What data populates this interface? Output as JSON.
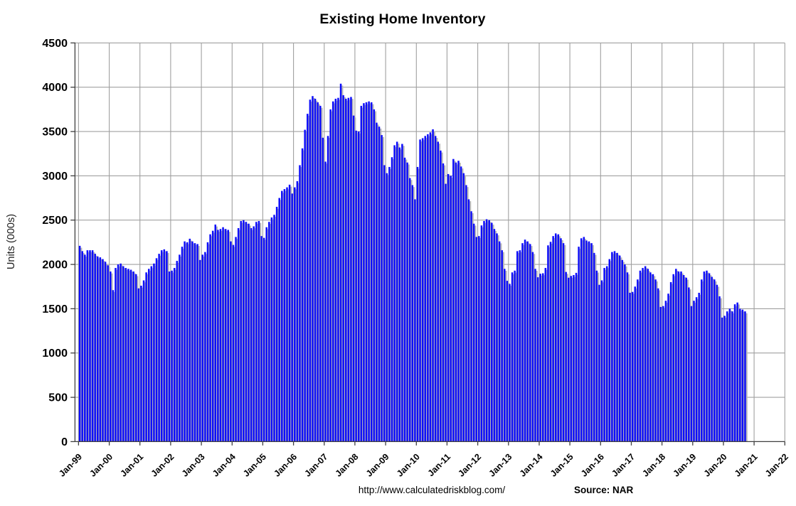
{
  "title": "Existing Home Inventory",
  "y_axis": {
    "label": "Units (000s)"
  },
  "footer": {
    "url": "http://www.calculatedriskblog.com/",
    "source": "Source: NAR"
  },
  "colors": {
    "bar": "#0d0dfa",
    "bar_shadow": "#b9b9b9",
    "grid": "#a0a0a0",
    "axis": "#3f3f3f",
    "text": "#000000",
    "background": "#ffffff"
  },
  "chart_data": {
    "type": "bar",
    "title": "Existing Home Inventory",
    "xlabel": "",
    "ylabel": "Units (000s)",
    "ylim": [
      0,
      4500
    ],
    "y_ticks": [
      0,
      500,
      1000,
      1500,
      2000,
      2500,
      3000,
      3500,
      4000,
      4500
    ],
    "x_ticklabels": [
      "Jan-99",
      "Jan-00",
      "Jan-01",
      "Jan-02",
      "Jan-03",
      "Jan-04",
      "Jan-05",
      "Jan-06",
      "Jan-07",
      "Jan-08",
      "Jan-09",
      "Jan-10",
      "Jan-11",
      "Jan-12",
      "Jan-13",
      "Jan-14",
      "Jan-15",
      "Jan-16",
      "Jan-17",
      "Jan-18",
      "Jan-19",
      "Jan-20",
      "Jan-21",
      "Jan-22"
    ],
    "frequency": "monthly",
    "start_month": "1999-01",
    "end_month": "2020-09",
    "x_axis_extends_to": "2022-01",
    "grid": true,
    "legend": false,
    "source_note": "Source: NAR",
    "series": [
      {
        "name": "Existing home inventory (thousands of units)",
        "values": [
          2210,
          2150,
          2110,
          2160,
          2160,
          2160,
          2120,
          2090,
          2080,
          2060,
          2030,
          1990,
          1920,
          1710,
          1960,
          2000,
          2010,
          1980,
          1960,
          1950,
          1940,
          1920,
          1890,
          1730,
          1760,
          1820,
          1910,
          1950,
          1980,
          2010,
          2070,
          2120,
          2160,
          2170,
          2150,
          1920,
          1930,
          1960,
          2040,
          2110,
          2200,
          2260,
          2250,
          2290,
          2260,
          2240,
          2230,
          2050,
          2110,
          2140,
          2250,
          2340,
          2380,
          2450,
          2390,
          2400,
          2420,
          2400,
          2390,
          2260,
          2220,
          2310,
          2410,
          2490,
          2500,
          2480,
          2460,
          2410,
          2430,
          2480,
          2490,
          2320,
          2300,
          2420,
          2480,
          2530,
          2560,
          2650,
          2750,
          2830,
          2850,
          2870,
          2900,
          2800,
          2870,
          2940,
          3120,
          3310,
          3520,
          3700,
          3860,
          3900,
          3870,
          3830,
          3790,
          3430,
          3160,
          3450,
          3750,
          3840,
          3870,
          3880,
          4040,
          3910,
          3870,
          3880,
          3890,
          3680,
          3510,
          3500,
          3790,
          3820,
          3830,
          3840,
          3830,
          3750,
          3600,
          3555,
          3460,
          3120,
          3030,
          3100,
          3210,
          3345,
          3385,
          3320,
          3360,
          3205,
          3150,
          2975,
          2895,
          2735,
          3100,
          3410,
          3425,
          3450,
          3470,
          3490,
          3525,
          3450,
          3385,
          3285,
          3140,
          2910,
          3020,
          3000,
          3190,
          3150,
          3170,
          3105,
          3030,
          2895,
          2735,
          2600,
          2460,
          2310,
          2320,
          2440,
          2490,
          2510,
          2500,
          2470,
          2400,
          2350,
          2260,
          2160,
          1950,
          1815,
          1780,
          1910,
          1930,
          2150,
          2160,
          2240,
          2280,
          2260,
          2230,
          2140,
          1950,
          1855,
          1895,
          1900,
          1960,
          2215,
          2255,
          2320,
          2350,
          2340,
          2295,
          2240,
          1915,
          1850,
          1870,
          1880,
          1905,
          2200,
          2295,
          2310,
          2270,
          2260,
          2240,
          2130,
          1930,
          1770,
          1820,
          1960,
          1980,
          2060,
          2140,
          2150,
          2130,
          2100,
          2050,
          2000,
          1910,
          1680,
          1690,
          1750,
          1830,
          1930,
          1960,
          1980,
          1950,
          1910,
          1890,
          1830,
          1730,
          1520,
          1530,
          1590,
          1670,
          1800,
          1890,
          1950,
          1920,
          1920,
          1880,
          1850,
          1740,
          1530,
          1590,
          1630,
          1680,
          1830,
          1920,
          1930,
          1900,
          1860,
          1830,
          1770,
          1640,
          1400,
          1420,
          1470,
          1500,
          1470,
          1550,
          1570,
          1500,
          1490,
          1470
        ]
      }
    ]
  }
}
